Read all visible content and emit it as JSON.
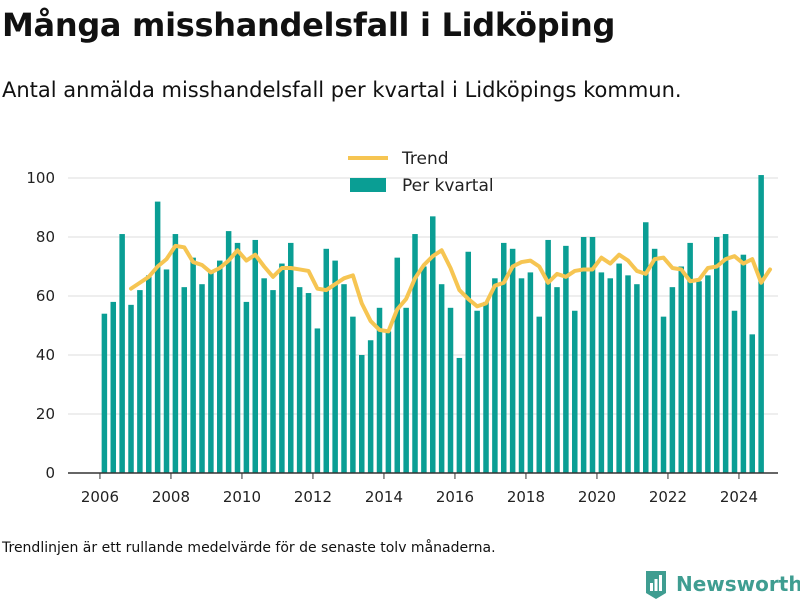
{
  "header": {
    "title": "Många misshandelsfall i Lidköping",
    "subtitle": "Antal anmälda misshandelsfall per kvartal i Lidköpings kommun."
  },
  "footer": {
    "note": "Trendlinjen är ett rullande medelvärde för de senaste tolv månaderna.",
    "brand": "Newsworthy"
  },
  "colors": {
    "bar": "#0a9e94",
    "trend": "#f6c552",
    "grid": "#dddddd",
    "axis": "#333333",
    "brand": "#3f9d91"
  },
  "chart_data": {
    "type": "bar",
    "title": "",
    "xlabel": "",
    "ylabel": "",
    "ylim": [
      0,
      100
    ],
    "yticks": [
      0,
      20,
      40,
      60,
      80,
      100
    ],
    "xlim": [
      2005.1,
      2025.1
    ],
    "xticks": [
      2006,
      2008,
      2010,
      2012,
      2014,
      2016,
      2018,
      2020,
      2022,
      2024
    ],
    "grid": true,
    "legend_position": "top-center",
    "start": "2006 Q1",
    "series": [
      {
        "name": "Per kvartal",
        "kind": "bar",
        "values": [
          54,
          58,
          81,
          57,
          62,
          67,
          92,
          69,
          81,
          63,
          73,
          64,
          68,
          72,
          82,
          78,
          58,
          79,
          66,
          62,
          71,
          78,
          63,
          61,
          49,
          76,
          72,
          64,
          53,
          40,
          45,
          56,
          48,
          73,
          56,
          81,
          70,
          87,
          64,
          56,
          39,
          75,
          55,
          58,
          66,
          78,
          76,
          66,
          68,
          53,
          79,
          63,
          77,
          55,
          80,
          80,
          68,
          66,
          71,
          67,
          64,
          85,
          76,
          53,
          63,
          70,
          78,
          65,
          67,
          80,
          81,
          55,
          74,
          47,
          101
        ]
      },
      {
        "name": "Trend",
        "kind": "line",
        "start_index": 3,
        "values": [
          62.5,
          64.5,
          66.5,
          70.0,
          72.5,
          77.0,
          76.5,
          71.5,
          70.5,
          68.0,
          69.5,
          72.0,
          75.5,
          72.0,
          74.0,
          70.0,
          66.5,
          69.5,
          69.5,
          69.0,
          68.5,
          62.5,
          62.0,
          64.0,
          66.0,
          67.0,
          57.5,
          51.5,
          48.5,
          48.0,
          55.5,
          59.0,
          66.0,
          70.5,
          73.5,
          75.5,
          69.5,
          62.0,
          59.0,
          56.5,
          57.5,
          63.5,
          64.5,
          70.0,
          71.5,
          72.0,
          70.0,
          64.5,
          67.5,
          66.5,
          68.5,
          69.0,
          69.0,
          73.0,
          71.0,
          74.0,
          72.0,
          68.5,
          67.5,
          72.5,
          73.0,
          69.5,
          69.0,
          65.0,
          65.5,
          69.5,
          70.0,
          72.5,
          73.5,
          71.0,
          72.5,
          64.5,
          69.0
        ]
      }
    ]
  }
}
